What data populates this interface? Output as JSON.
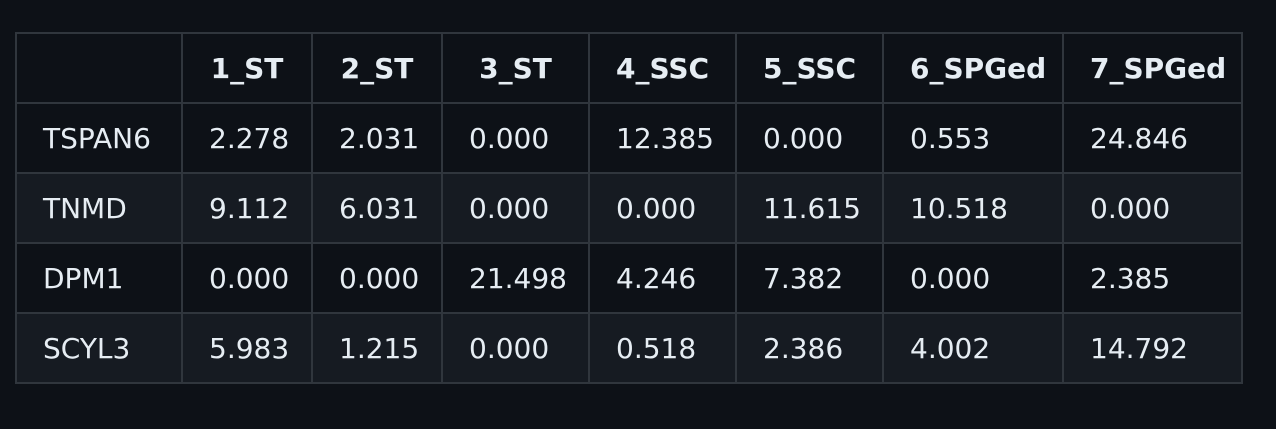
{
  "table": {
    "corner": "",
    "columns": [
      "1_ST",
      "2_ST",
      "3_ST",
      "4_SSC",
      "5_SSC",
      "6_SPGed",
      "7_SPGed"
    ],
    "rows": [
      {
        "gene": "TSPAN6",
        "values": [
          "2.278",
          "2.031",
          "0.000",
          "12.385",
          "0.000",
          "0.553",
          "24.846"
        ]
      },
      {
        "gene": "TNMD",
        "values": [
          "9.112",
          "6.031",
          "0.000",
          "0.000",
          "11.615",
          "10.518",
          "0.000"
        ]
      },
      {
        "gene": "DPM1",
        "values": [
          "0.000",
          "0.000",
          "21.498",
          "4.246",
          "7.382",
          "0.000",
          "2.385"
        ]
      },
      {
        "gene": "SCYL3",
        "values": [
          "5.983",
          "1.215",
          "0.000",
          "0.518",
          "2.386",
          "4.002",
          "14.792"
        ]
      }
    ]
  }
}
